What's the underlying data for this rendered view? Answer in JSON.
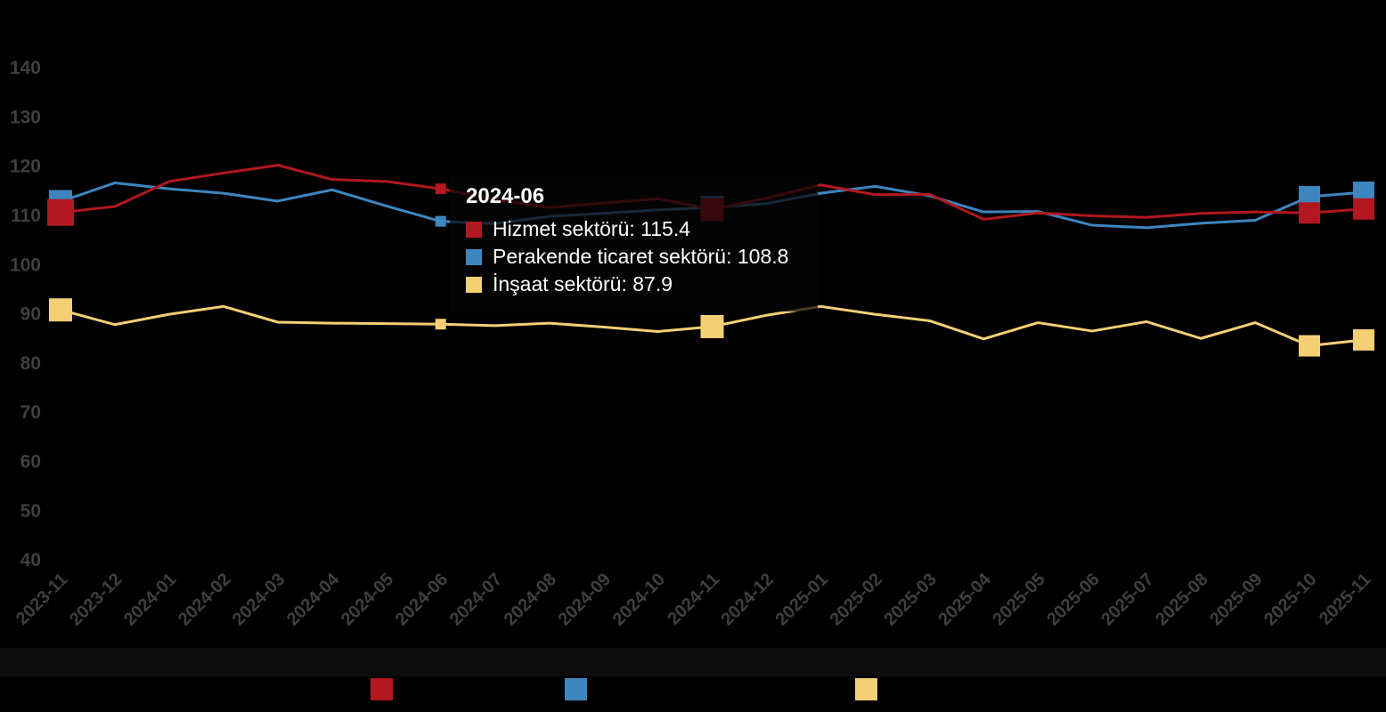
{
  "chart_data": {
    "type": "line",
    "title": "",
    "x": [
      "2023-11",
      "2023-12",
      "2024-01",
      "2024-02",
      "2024-03",
      "2024-04",
      "2024-05",
      "2024-06",
      "2024-07",
      "2024-08",
      "2024-09",
      "2024-10",
      "2024-11",
      "2024-12",
      "2025-01",
      "2025-02",
      "2025-03",
      "2025-04",
      "2025-05",
      "2025-06",
      "2025-07",
      "2025-08",
      "2025-09",
      "2025-10",
      "2025-11"
    ],
    "series": [
      {
        "name": "Hizmet sektörü",
        "color": "#b2181f",
        "values": [
          110.6,
          111.8,
          116.9,
          118.6,
          120.2,
          117.3,
          116.9,
          115.4,
          113.2,
          111.6,
          112.5,
          113.4,
          111.2,
          113.5,
          116.2,
          114.2,
          114.3,
          109.2,
          110.5,
          109.9,
          109.6,
          110.4,
          110.7,
          110.5,
          111.3
        ]
      },
      {
        "name": "Perakende ticaret sektörü",
        "color": "#3d86c0",
        "values": [
          112.8,
          116.6,
          115.4,
          114.5,
          112.9,
          115.2,
          111.9,
          108.8,
          108.3,
          109.8,
          110.4,
          111.1,
          111.6,
          112.4,
          114.5,
          115.9,
          114.0,
          110.7,
          110.8,
          108.0,
          107.5,
          108.4,
          109.0,
          113.8,
          114.7
        ]
      },
      {
        "name": "İnşaat sektörü",
        "color": "#f5cf74",
        "values": [
          90.8,
          87.8,
          89.9,
          91.5,
          88.3,
          88.1,
          88.0,
          87.9,
          87.6,
          88.1,
          87.3,
          86.4,
          87.4,
          89.7,
          91.5,
          89.9,
          88.6,
          84.9,
          88.2,
          86.5,
          88.4,
          85.0,
          88.2,
          83.5,
          84.7
        ]
      }
    ],
    "ylabel": "",
    "xlabel": "",
    "ylim": [
      40,
      140
    ],
    "y_tick_step": 10,
    "y_tick_labels": [
      "140",
      "130",
      "120",
      "110",
      "100",
      "90",
      "80",
      "70",
      "60",
      "50",
      "40"
    ],
    "grid": false,
    "legend_position": "bottom",
    "emphasized_month_indices": [
      0,
      12,
      23,
      24
    ],
    "hover_month_index": 7
  },
  "tooltip": {
    "title": "2024-06",
    "separator": ": ",
    "rows": [
      {
        "label": "Hizmet sektörü",
        "value": "115.4",
        "color": "#b2181f"
      },
      {
        "label": "Perakende ticaret sektörü",
        "value": "108.8",
        "color": "#3d86c0"
      },
      {
        "label": "İnşaat sektörü",
        "value": "87.9",
        "color": "#f5cf74"
      }
    ]
  },
  "legend": {
    "items": [
      {
        "series": "Hizmet sektörü",
        "color": "#b2181f"
      },
      {
        "series": "Perakende ticaret sektörü",
        "color": "#3d86c0"
      },
      {
        "series": "İnşaat sektörü",
        "color": "#f5cf74"
      }
    ]
  },
  "colors": {
    "background": "#000000",
    "axis_label": "#3f3f3f",
    "tooltip_text": "#ffffff"
  }
}
